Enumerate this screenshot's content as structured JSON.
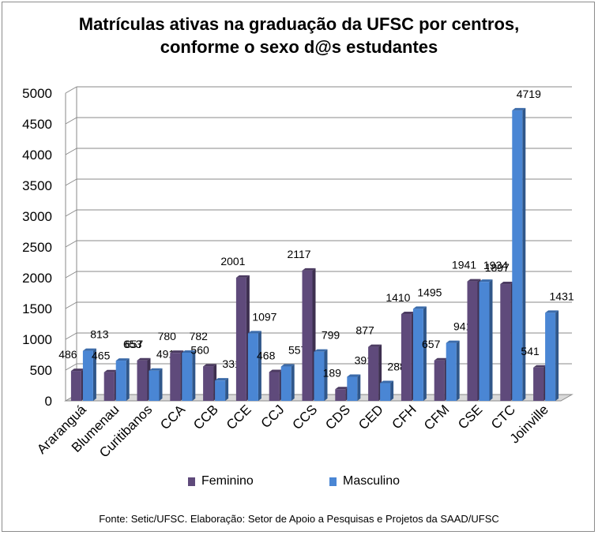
{
  "chart_data": {
    "type": "bar",
    "title_line1": "Matrículas ativas na graduação  da UFSC por centros,",
    "title_line2": "conforme o sexo d@s estudantes",
    "categories": [
      "Araranguá",
      "Blumenau",
      "Curitibanos",
      "CCA",
      "CCB",
      "CCE",
      "CCJ",
      "CCS",
      "CDS",
      "CED",
      "CFH",
      "CFM",
      "CSE",
      "CTC",
      "Joinville"
    ],
    "series": [
      {
        "name": "Feminino",
        "color": "#5f4a7b",
        "values": [
          486,
          465,
          657,
          780,
          560,
          2001,
          468,
          2117,
          189,
          877,
          1410,
          657,
          1941,
          1897,
          541
        ]
      },
      {
        "name": "Masculino",
        "color": "#4a86d4",
        "values": [
          813,
          653,
          491,
          782,
          331,
          1097,
          557,
          799,
          391,
          288,
          1495,
          941,
          1934,
          4719,
          1431
        ]
      }
    ],
    "ylim": [
      0,
      5000
    ],
    "yticks": [
      0,
      500,
      1000,
      1500,
      2000,
      2500,
      3000,
      3500,
      4000,
      4500,
      5000
    ],
    "grid": true,
    "legend_position": "bottom",
    "source": "Fonte: Setic/UFSC. Elaboração: Setor de Apoio a Pesquisas e Projetos da SAAD/UFSC"
  }
}
